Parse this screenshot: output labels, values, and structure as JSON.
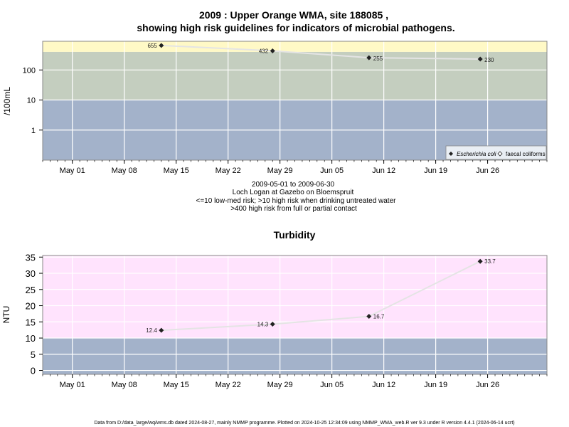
{
  "title_line1": "2009 : Upper Orange WMA, site 188085 ,",
  "title_line2": "showing high risk guidelines for indicators of microbial pathogens.",
  "caption": [
    "2009-05-01 to 2009-06-30",
    "Loch Logan at Gazebo on Bloemspruit",
    "<=10 low-med risk; >10 high risk when drinking untreated water",
    ">400 high risk from full or partial contact"
  ],
  "footer": "Data from D:/data_large/wq/wms.db dated 2024-08-27, mainly NMMP programme. Plotted on 2024-10-25 12:34:09 using NMMP_WMA_web.R ver 9.3 under R version 4.4.1 (2024-06-14 ucrt)",
  "colors": {
    "high_risk_contact": "#FFF9C6",
    "high_risk_drinking": "#C4CEBF",
    "low_med_risk": "#A3B2CA",
    "turbidity_high": "#FFE3FD",
    "turbidity_low": "#A3B2CA",
    "series_line": "#E4E4E4",
    "marker": "#222222",
    "grid": "#ffffff",
    "legend_bg": "#E9EEF4"
  },
  "chart_data": [
    {
      "type": "scatter",
      "title": "",
      "ylabel": "/100mL",
      "xlabel": "",
      "y_scale": "log",
      "ylim": [
        0.1,
        900
      ],
      "xlim": [
        "2009-04-27",
        "2009-07-04"
      ],
      "x_ticks": [
        "2009-05-01",
        "2009-05-08",
        "2009-05-15",
        "2009-05-22",
        "2009-05-29",
        "2009-06-05",
        "2009-06-12",
        "2009-06-19",
        "2009-06-26"
      ],
      "x_tick_labels": [
        "May 01",
        "May 08",
        "May 15",
        "May 22",
        "May 29",
        "Jun 05",
        "Jun 12",
        "Jun 19",
        "Jun 26"
      ],
      "y_ticks": [
        1,
        10,
        100
      ],
      "y_tick_labels": [
        "1",
        "10",
        "100"
      ],
      "bands": [
        {
          "from": 0.1,
          "to": 10,
          "color_key": "low_med_risk"
        },
        {
          "from": 10,
          "to": 400,
          "color_key": "high_risk_drinking"
        },
        {
          "from": 400,
          "to": 900,
          "color_key": "high_risk_contact"
        }
      ],
      "grid": true,
      "legend_position": "bottom-right",
      "legend": [
        {
          "label": "Escherichia coli",
          "marker": "filled-diamond",
          "italic": true
        },
        {
          "label": "faecal coliforms",
          "marker": "open-diamond",
          "italic": false
        }
      ],
      "series": [
        {
          "name": "Escherichia coli",
          "x": [
            "2009-05-13",
            "2009-05-28",
            "2009-06-10",
            "2009-06-25"
          ],
          "y": [
            655,
            432,
            255,
            230
          ],
          "labels": [
            "655",
            "432",
            "255",
            "230"
          ]
        }
      ]
    },
    {
      "type": "line",
      "title": "Turbidity",
      "ylabel": "NTU",
      "xlabel": "",
      "ylim": [
        -1.2,
        35.5
      ],
      "xlim": [
        "2009-04-27",
        "2009-07-04"
      ],
      "x_ticks": [
        "2009-05-01",
        "2009-05-08",
        "2009-05-15",
        "2009-05-22",
        "2009-05-29",
        "2009-06-05",
        "2009-06-12",
        "2009-06-19",
        "2009-06-26"
      ],
      "x_tick_labels": [
        "May 01",
        "May 08",
        "May 15",
        "May 22",
        "May 29",
        "Jun 05",
        "Jun 12",
        "Jun 19",
        "Jun 26"
      ],
      "y_ticks": [
        0,
        5,
        10,
        15,
        20,
        25,
        30,
        35
      ],
      "y_tick_labels": [
        "0",
        "5",
        "10",
        "15",
        "20",
        "25",
        "30",
        "35"
      ],
      "bands": [
        {
          "from": -1.2,
          "to": 10,
          "color_key": "turbidity_low"
        },
        {
          "from": 10,
          "to": 35.5,
          "color_key": "turbidity_high"
        }
      ],
      "grid": true,
      "series": [
        {
          "x": [
            "2009-05-13",
            "2009-05-28",
            "2009-06-10",
            "2009-06-25"
          ],
          "y": [
            12.4,
            14.3,
            16.7,
            33.7
          ],
          "labels": [
            "12.4",
            "14.3",
            "16.7",
            "33.7"
          ]
        }
      ]
    }
  ]
}
